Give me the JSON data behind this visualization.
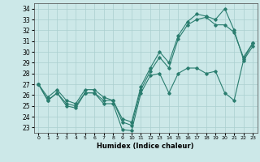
{
  "xlabel": "Humidex (Indice chaleur)",
  "line_color": "#2a7d6f",
  "bg_color": "#cce8e8",
  "grid_color": "#aacfcf",
  "ylim": [
    22.5,
    34.5
  ],
  "xlim": [
    -0.5,
    23.5
  ],
  "yticks": [
    23,
    24,
    25,
    26,
    27,
    28,
    29,
    30,
    31,
    32,
    33,
    34
  ],
  "xticks": [
    0,
    1,
    2,
    3,
    4,
    5,
    6,
    7,
    8,
    9,
    10,
    11,
    12,
    13,
    14,
    15,
    16,
    17,
    18,
    19,
    20,
    21,
    22,
    23
  ],
  "line_bottom": [
    27,
    25.5,
    26.2,
    25.0,
    24.8,
    26.2,
    26.2,
    25.2,
    25.2,
    22.8,
    22.7,
    26.2,
    27.8,
    28.0,
    26.2,
    28.0,
    28.5,
    28.5,
    28.0,
    28.2,
    26.2,
    25.5,
    29.2,
    30.5
  ],
  "line_mid": [
    27,
    25.5,
    26.2,
    25.2,
    25.0,
    26.2,
    26.2,
    25.5,
    25.5,
    23.5,
    23.2,
    26.5,
    28.2,
    29.5,
    28.5,
    31.2,
    32.5,
    33.0,
    33.2,
    32.5,
    32.5,
    31.8,
    29.5,
    30.8
  ],
  "line_top": [
    27,
    25.8,
    26.5,
    25.5,
    25.2,
    26.5,
    26.5,
    25.8,
    25.5,
    23.8,
    23.5,
    26.8,
    28.5,
    30.0,
    29.0,
    31.5,
    32.8,
    33.5,
    33.3,
    33.0,
    34.0,
    32.0,
    29.3,
    30.8
  ]
}
